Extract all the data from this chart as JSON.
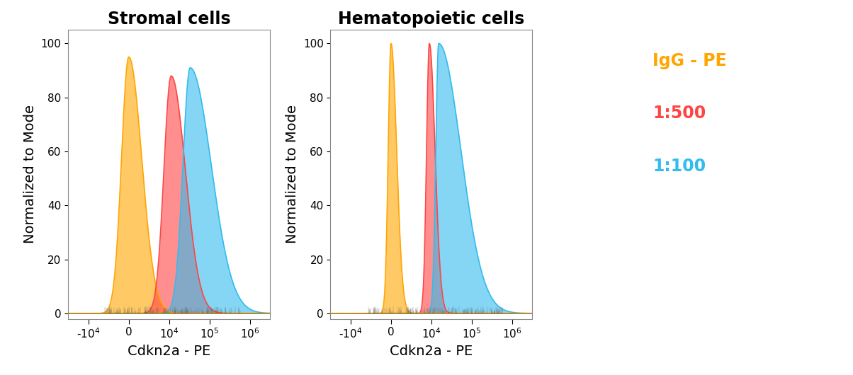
{
  "title_left": "Stromal cells",
  "title_right": "Hematopoietic cells",
  "xlabel": "Cdkn2a - PE",
  "ylabel": "Normalized to Mode",
  "ylim": [
    -2,
    105
  ],
  "yticks": [
    0,
    20,
    40,
    60,
    80,
    100
  ],
  "legend_labels": [
    "IgG - PE",
    "1:500",
    "1:100"
  ],
  "color_igg": "#FFA500",
  "color_500": "#FF4444",
  "color_100": "#33BBEE",
  "fill_alpha": 0.6,
  "background_color": "#ffffff",
  "title_fontsize": 17,
  "label_fontsize": 14,
  "legend_fontsize": 17,
  "tick_fontsize": 11,
  "x_ticks_pos": [
    -1,
    0,
    1,
    2,
    3
  ],
  "x_tick_labels": [
    "-10$^{4}$",
    "0",
    "10$^{4}$",
    "10$^{5}$",
    "10$^{6}$"
  ],
  "xlim": [
    -1.5,
    3.5
  ],
  "stromal": {
    "igg": {
      "mu": 0.0,
      "sl": 0.18,
      "sr": 0.32,
      "peak": 95
    },
    "s500": {
      "mu": 1.05,
      "sl": 0.18,
      "sr": 0.35,
      "peak": 88
    },
    "s100": {
      "mu": 1.52,
      "sl": 0.18,
      "sr": 0.52,
      "peak": 91
    }
  },
  "hemato": {
    "igg": {
      "mu": 0.0,
      "sl": 0.07,
      "sr": 0.14,
      "peak": 100
    },
    "s500": {
      "mu": 0.95,
      "sl": 0.07,
      "sr": 0.14,
      "peak": 100
    },
    "s100": {
      "mu": 1.18,
      "sl": 0.07,
      "sr": 0.55,
      "peak": 100
    }
  }
}
